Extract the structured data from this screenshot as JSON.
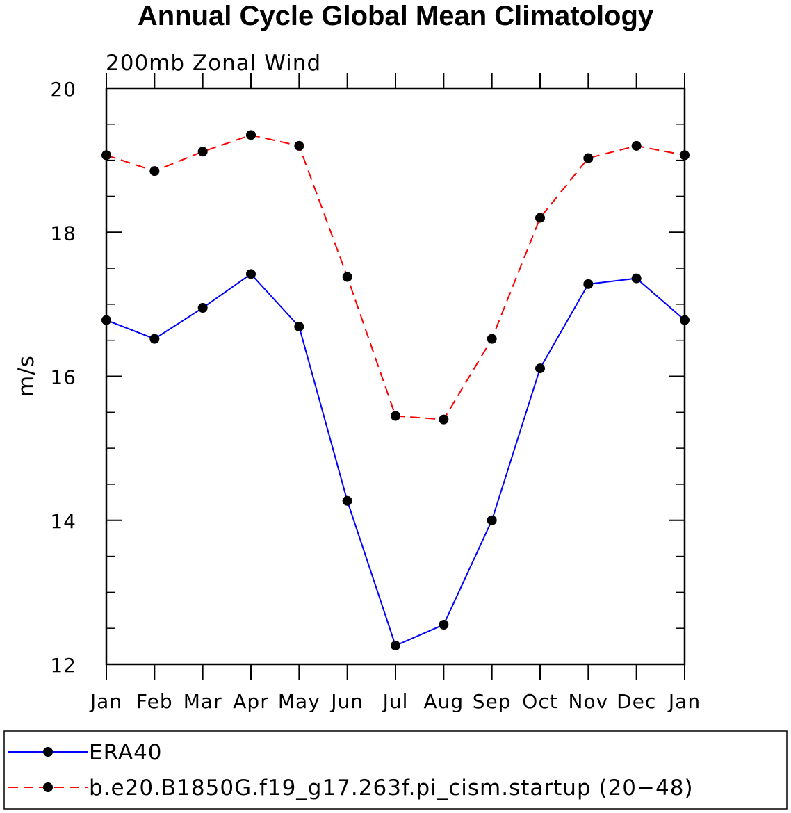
{
  "chart_data": {
    "type": "line",
    "title": "Annual Cycle Global Mean Climatology",
    "subtitle": "200mb Zonal Wind",
    "ylabel": "m/s",
    "xlabel": "",
    "ylim": [
      12,
      20
    ],
    "yticks": [
      12,
      14,
      16,
      18,
      20
    ],
    "categories": [
      "Jan",
      "Feb",
      "Mar",
      "Apr",
      "May",
      "Jun",
      "Jul",
      "Aug",
      "Sep",
      "Oct",
      "Nov",
      "Dec",
      "Jan"
    ],
    "series": [
      {
        "name": "ERA40",
        "color": "#0000ff",
        "dash": "solid",
        "values": [
          16.78,
          16.52,
          16.95,
          17.42,
          16.69,
          14.27,
          12.26,
          12.55,
          14.0,
          16.11,
          17.28,
          17.36,
          16.78
        ]
      },
      {
        "name": "b.e20.B1850G.f19_g17.263f.pi_cism.startup (20−48)",
        "color": "#ff0000",
        "dash": "dashed",
        "values": [
          19.07,
          18.85,
          19.12,
          19.35,
          19.2,
          17.38,
          15.45,
          15.4,
          16.52,
          18.2,
          19.03,
          19.2,
          19.07
        ]
      }
    ],
    "legend_position": "bottom"
  }
}
